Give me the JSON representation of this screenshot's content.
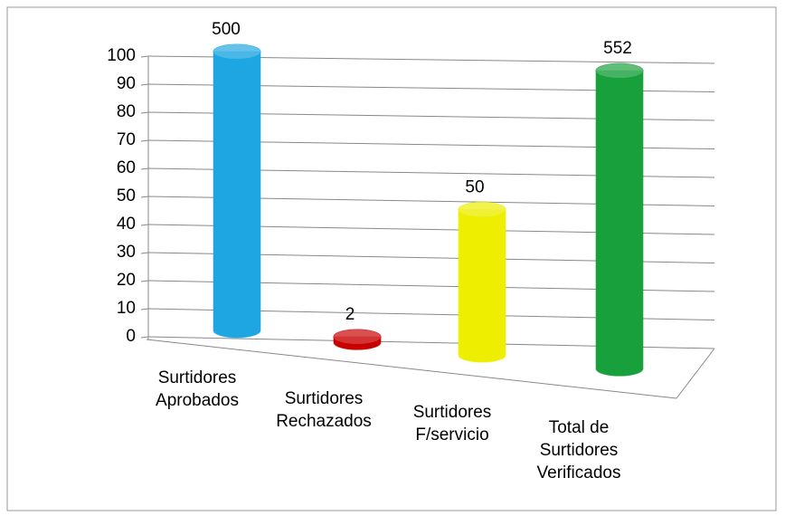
{
  "chart_data": {
    "type": "bar3d",
    "categories": [
      "Surtidores Aprobados",
      "Surtidores Rechazados",
      "Surtidores F/servicio",
      "Total de Surtidores Verificados"
    ],
    "values": [
      500,
      2,
      50,
      552
    ],
    "colors": [
      "#1ea6e2",
      "#c80000",
      "#eeee00",
      "#17a03c"
    ],
    "ylim": [
      0,
      100
    ],
    "yticks": [
      0,
      10,
      20,
      30,
      40,
      50,
      60,
      70,
      80,
      90,
      100
    ],
    "grid": true
  }
}
